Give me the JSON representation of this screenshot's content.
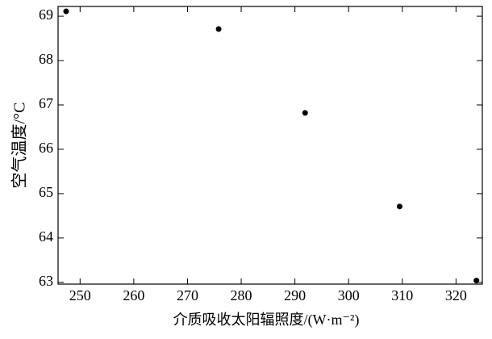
{
  "chart_data": {
    "type": "scatter",
    "x_label": "介质吸收太阳辐照度/(W·m⁻²)",
    "y_label": "空气温度/°C",
    "x": [
      247.4,
      275.8,
      291.9,
      309.5,
      323.8
    ],
    "values": [
      69.11,
      68.71,
      66.82,
      64.71,
      63.04
    ],
    "color": "#000000",
    "xlim": [
      245.9,
      324.9
    ],
    "xticks": [
      250,
      260,
      270,
      280,
      290,
      300,
      310,
      320
    ],
    "ylim": [
      62.96,
      69.22
    ],
    "yticks": [
      63,
      64,
      65,
      66,
      67,
      68,
      69
    ]
  }
}
